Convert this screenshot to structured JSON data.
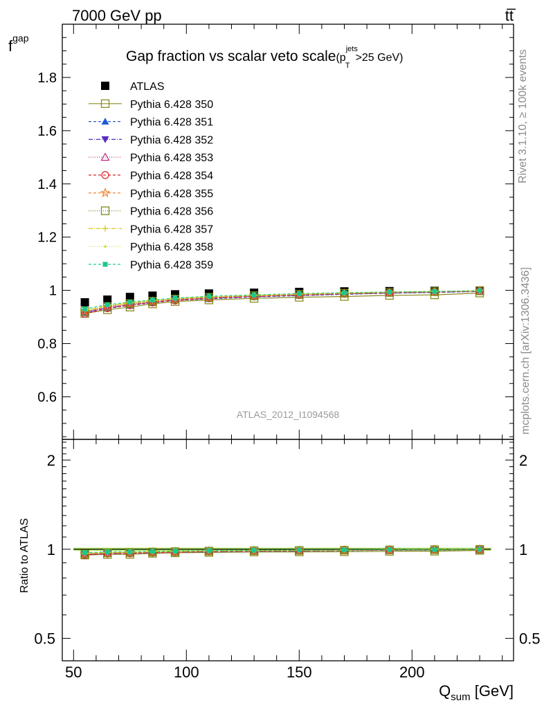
{
  "header": {
    "energy_label": "7000 GeV pp",
    "process_label": "tt̅"
  },
  "side_labels": {
    "rivet": "Rivet 3.1.10, ≥ 100k events",
    "mcplots": "mcplots.cern.ch [arXiv:1306.3436]"
  },
  "chart_data": [
    {
      "type": "line",
      "title_main": "Gap fraction vs scalar veto scale",
      "title_sub_prefix": "(p",
      "title_sub_sup": "jets",
      "title_sub_sub": "T",
      "title_sub_suffix": ">25 GeV)",
      "ylabel_main": "f",
      "ylabel_sub": "gap",
      "watermark": "ATLAS_2012_I1094568",
      "xlim": [
        45,
        245
      ],
      "ylim": [
        0.44,
        2.0
      ],
      "yticks": [
        0.6,
        0.8,
        1.0,
        1.2,
        1.4,
        1.6,
        1.8
      ],
      "ytick_labels": [
        "0.6",
        "0.8",
        "1",
        "1.2",
        "1.4",
        "1.6",
        "1.8"
      ],
      "x": [
        55,
        65,
        75,
        85,
        95,
        110,
        130,
        150,
        170,
        190,
        210,
        230
      ],
      "series": [
        {
          "name": "ATLAS",
          "color": "#000000",
          "marker": "square-filled",
          "dash": "none",
          "values": [
            0.955,
            0.965,
            0.975,
            0.98,
            0.985,
            0.988,
            0.991,
            0.994,
            0.996,
            0.997,
            0.998,
            0.999
          ]
        },
        {
          "name": "Pythia 6.428 350",
          "color": "#8a8a1e",
          "marker": "square-open",
          "dash": "solid",
          "values": [
            0.913,
            0.927,
            0.937,
            0.949,
            0.958,
            0.964,
            0.97,
            0.974,
            0.977,
            0.981,
            0.983,
            0.99
          ]
        },
        {
          "name": "Pythia 6.428 351",
          "color": "#1f5bd6",
          "marker": "triangle-up-filled",
          "dash": "4,3",
          "values": [
            0.915,
            0.932,
            0.943,
            0.953,
            0.962,
            0.968,
            0.975,
            0.98,
            0.985,
            0.989,
            0.992,
            0.996
          ]
        },
        {
          "name": "Pythia 6.428 352",
          "color": "#5a2ac8",
          "marker": "triangle-down-filled",
          "dash": "6,2,1,2",
          "values": [
            0.916,
            0.934,
            0.945,
            0.955,
            0.963,
            0.97,
            0.976,
            0.981,
            0.986,
            0.99,
            0.993,
            0.996
          ]
        },
        {
          "name": "Pythia 6.428 353",
          "color": "#c8228a",
          "marker": "triangle-up-open",
          "dash": "1,2",
          "values": [
            0.918,
            0.936,
            0.947,
            0.957,
            0.964,
            0.972,
            0.978,
            0.983,
            0.987,
            0.991,
            0.994,
            0.997
          ]
        },
        {
          "name": "Pythia 6.428 354",
          "color": "#e01e28",
          "marker": "circle-open",
          "dash": "4,3",
          "values": [
            0.912,
            0.933,
            0.944,
            0.954,
            0.962,
            0.97,
            0.977,
            0.982,
            0.987,
            0.991,
            0.994,
            0.997
          ]
        },
        {
          "name": "Pythia 6.428 355",
          "color": "#f07820",
          "marker": "star-open",
          "dash": "4,3",
          "values": [
            0.92,
            0.938,
            0.949,
            0.958,
            0.966,
            0.973,
            0.979,
            0.984,
            0.988,
            0.992,
            0.995,
            0.998
          ]
        },
        {
          "name": "Pythia 6.428 356",
          "color": "#7a8c14",
          "marker": "square-open",
          "dash": "1,2",
          "values": [
            0.921,
            0.939,
            0.95,
            0.959,
            0.967,
            0.974,
            0.98,
            0.985,
            0.989,
            0.992,
            0.995,
            0.998
          ]
        },
        {
          "name": "Pythia 6.428 357",
          "color": "#d6c814",
          "marker": "cross",
          "dash": "6,2,1,2",
          "values": [
            0.924,
            0.942,
            0.953,
            0.962,
            0.969,
            0.976,
            0.981,
            0.986,
            0.99,
            0.993,
            0.996,
            0.998
          ]
        },
        {
          "name": "Pythia 6.428 358",
          "color": "#c8e620",
          "marker": "dot",
          "dash": "1,2",
          "values": [
            0.926,
            0.944,
            0.955,
            0.963,
            0.97,
            0.977,
            0.982,
            0.987,
            0.991,
            0.994,
            0.996,
            0.999
          ]
        },
        {
          "name": "Pythia 6.428 359",
          "color": "#1ec88c",
          "marker": "square-filled-small",
          "dash": "4,3",
          "values": [
            0.93,
            0.946,
            0.956,
            0.964,
            0.971,
            0.978,
            0.983,
            0.988,
            0.991,
            0.994,
            0.996,
            0.999
          ]
        }
      ]
    },
    {
      "type": "line",
      "ylabel": "Ratio to ATLAS",
      "xlabel_main": "Q",
      "xlabel_sub": "sum",
      "xlabel_suffix": " [GeV]",
      "xlim": [
        45,
        245
      ],
      "ylim": [
        0.42,
        2.35
      ],
      "yscale": "log",
      "yticks": [
        0.5,
        1,
        2
      ],
      "ytick_labels": [
        "0.5",
        "1",
        "2"
      ],
      "xticks": [
        50,
        100,
        150,
        200
      ],
      "xtick_labels": [
        "50",
        "100",
        "150",
        "200"
      ],
      "band_color": "#a8e85a"
    }
  ]
}
